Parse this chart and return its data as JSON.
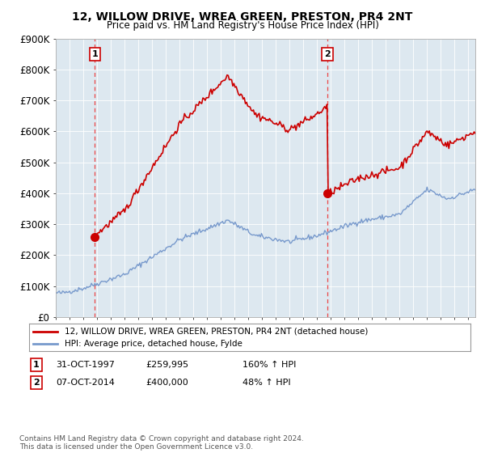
{
  "title": "12, WILLOW DRIVE, WREA GREEN, PRESTON, PR4 2NT",
  "subtitle": "Price paid vs. HM Land Registry's House Price Index (HPI)",
  "red_label": "12, WILLOW DRIVE, WREA GREEN, PRESTON, PR4 2NT (detached house)",
  "blue_label": "HPI: Average price, detached house, Fylde",
  "sale1_date": "31-OCT-1997",
  "sale1_price": 259995,
  "sale1_hpi": "160% ↑ HPI",
  "sale2_date": "07-OCT-2014",
  "sale2_price": 400000,
  "sale2_hpi": "48% ↑ HPI",
  "footnote": "Contains HM Land Registry data © Crown copyright and database right 2024.\nThis data is licensed under the Open Government Licence v3.0.",
  "ylim": [
    0,
    900000
  ],
  "yticks": [
    0,
    100000,
    200000,
    300000,
    400000,
    500000,
    600000,
    700000,
    800000,
    900000
  ],
  "ytick_labels": [
    "£0",
    "£100K",
    "£200K",
    "£300K",
    "£400K",
    "£500K",
    "£600K",
    "£700K",
    "£800K",
    "£900K"
  ],
  "red_color": "#cc0000",
  "blue_color": "#7799cc",
  "dashed_color": "#ee3333",
  "plot_bg_color": "#dde8f0",
  "bg_color": "#ffffff",
  "grid_color": "#ffffff",
  "sale1_x": 1997.833,
  "sale2_x": 2014.75
}
